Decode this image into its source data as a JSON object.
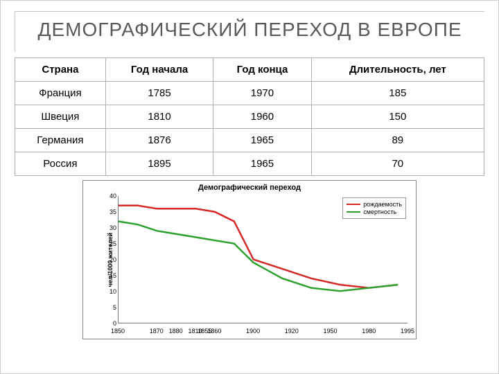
{
  "title": "ДЕМОГРАФИЧЕСКИЙ ПЕРЕХОД В ЕВРОПЕ",
  "table": {
    "columns": [
      "Страна",
      "Год начала",
      "Год конца",
      "Длительность, лет"
    ],
    "rows": [
      [
        "Франция",
        "1785",
        "1970",
        "185"
      ],
      [
        "Швеция",
        "1810",
        "1960",
        "150"
      ],
      [
        "Германия",
        "1876",
        "1965",
        "89"
      ],
      [
        "Россия",
        "1895",
        "1965",
        "70"
      ]
    ]
  },
  "chart": {
    "type": "line",
    "title": "Демографический переход",
    "x_label": "",
    "y_label": "чел/1000 жителей",
    "xlim": [
      1850,
      2000
    ],
    "xticks": [
      1850,
      1870,
      1880,
      1890,
      1895,
      1900,
      1920,
      1940,
      1960,
      1980,
      2000
    ],
    "xtick_labels": [
      "1850",
      "1870",
      "1880",
      "1810",
      "1855",
      "1860",
      "1900",
      "1920",
      "1950",
      "1980",
      "1995"
    ],
    "ylim": [
      0,
      40
    ],
    "yticks": [
      0,
      5,
      10,
      15,
      20,
      25,
      30,
      35,
      40
    ],
    "series": [
      {
        "name": "рождаемость",
        "color": "#d62728",
        "line_width": 2.5,
        "x": [
          1850,
          1860,
          1870,
          1880,
          1890,
          1900,
          1910,
          1920,
          1935,
          1950,
          1965,
          1980,
          1995
        ],
        "y": [
          37,
          37,
          36,
          36,
          36,
          35,
          32,
          20,
          17,
          14,
          12,
          11,
          12
        ]
      },
      {
        "name": "смертность",
        "color": "#2ca02c",
        "line_width": 2.5,
        "x": [
          1850,
          1860,
          1870,
          1880,
          1890,
          1900,
          1910,
          1920,
          1935,
          1950,
          1965,
          1980,
          1995
        ],
        "y": [
          32,
          31,
          29,
          28,
          27,
          26,
          25,
          19,
          14,
          11,
          10,
          11,
          12
        ]
      }
    ],
    "background_color": "#ffffff",
    "axis_color": "#777777",
    "tick_fontsize": 9,
    "title_fontsize": 11
  }
}
